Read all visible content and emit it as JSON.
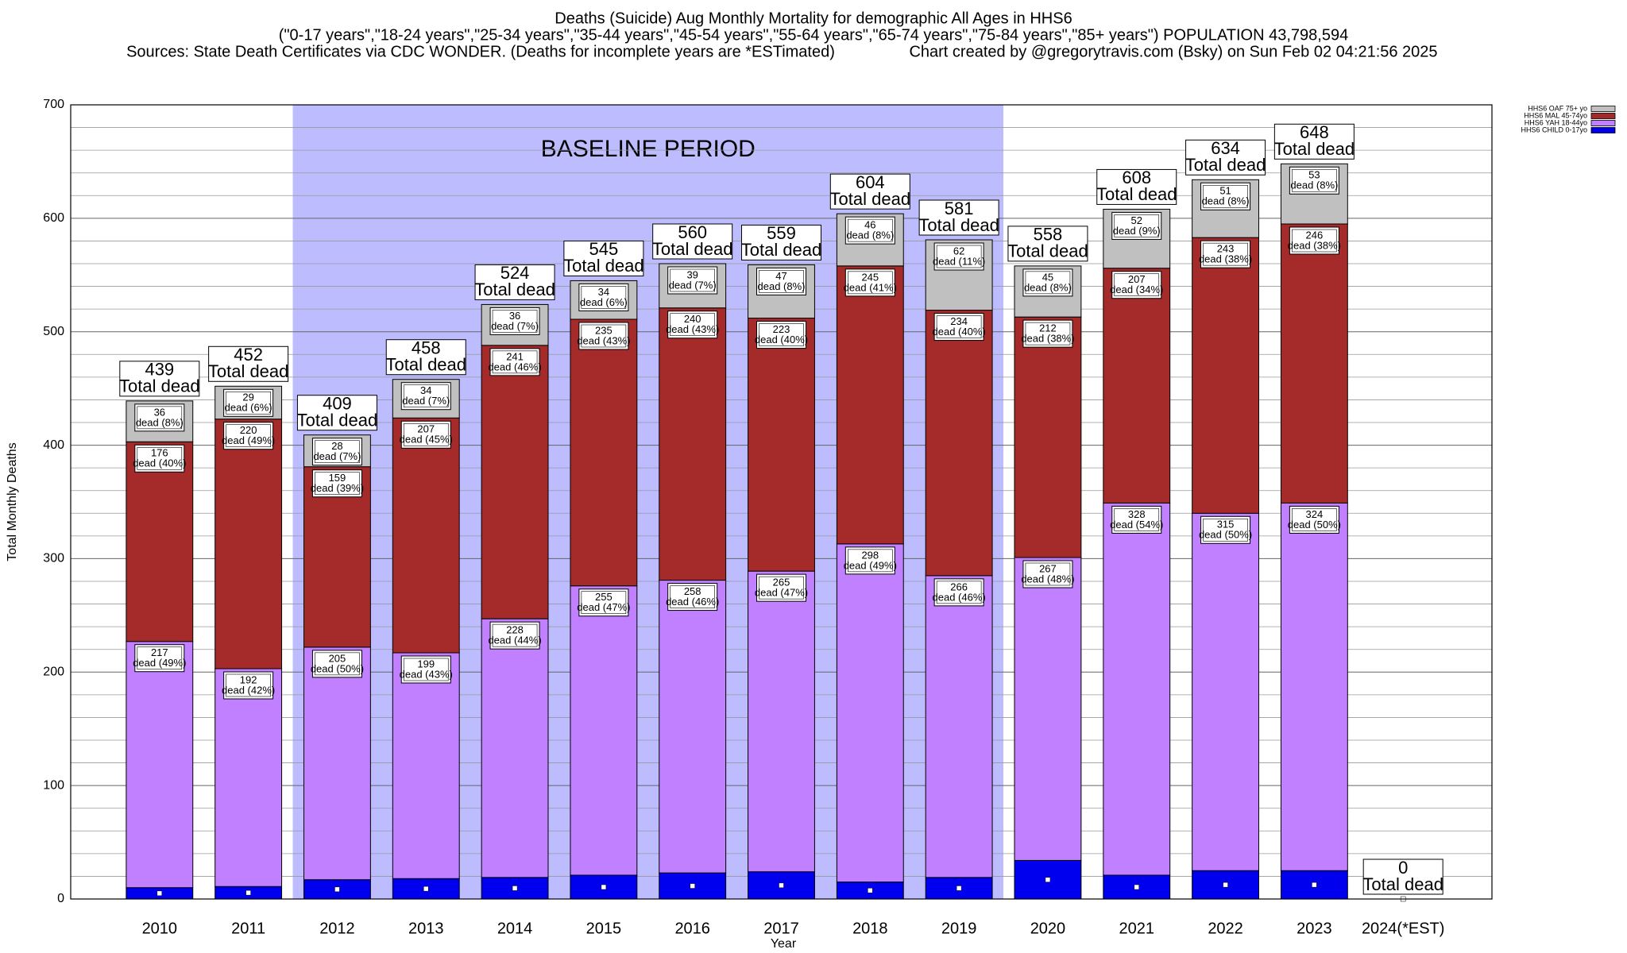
{
  "chart_data": {
    "type": "bar",
    "stacked": true,
    "title": "Deaths (Suicide) Aug Monthly Mortality for demographic All Ages in HHS6",
    "subtitle": "(\"0-17 years\",\"18-24 years\",\"25-34 years\",\"35-44 years\",\"45-54 years\",\"55-64 years\",\"65-74 years\",\"75-84 years\",\"85+ years\") POPULATION 43,798,594",
    "source": "Sources: State Death Certificates via CDC WONDER. (Deaths for incomplete years are *ESTimated)",
    "credit": "Chart created by @gregorytravis.com (Bsky) on Sun Feb 02 04:21:56 2025",
    "x_label": "Year",
    "y_label": "Total Monthly Deaths",
    "categories": [
      "2010",
      "2011",
      "2012",
      "2013",
      "2014",
      "2015",
      "2016",
      "2017",
      "2018",
      "2019",
      "2020",
      "2021",
      "2022",
      "2023",
      "2024(*EST)"
    ],
    "baseline": {
      "label": "BASELINE PERIOD",
      "start": "2012",
      "end": "2019",
      "color": "#bcbcff"
    },
    "series": [
      {
        "name": "HHS6 CHILD 0-17yo",
        "color": "#0000ee",
        "values": [
          10,
          11,
          17,
          18,
          19,
          21,
          23,
          24,
          15,
          19,
          34,
          21,
          25,
          25,
          0
        ]
      },
      {
        "name": "HHS6 YAH 18-44yo",
        "color": "#c080ff",
        "values": [
          217,
          192,
          205,
          199,
          228,
          255,
          258,
          265,
          298,
          266,
          267,
          328,
          315,
          324,
          0
        ],
        "value_labels": [
          "dead (49%)",
          "dead (42%)",
          "dead (50%)",
          "dead (43%)",
          "dead (44%)",
          "dead (47%)",
          "dead (46%)",
          "dead (47%)",
          "dead (49%)",
          "dead (46%)",
          "dead (48%)",
          "dead (54%)",
          "dead (50%)",
          "dead (50%)",
          null
        ]
      },
      {
        "name": "HHS6 MAL 45-74yo",
        "color": "#a52a2a",
        "values": [
          176,
          220,
          159,
          207,
          241,
          235,
          240,
          223,
          245,
          234,
          212,
          207,
          243,
          246,
          0
        ],
        "value_labels": [
          "dead (40%)",
          "dead (49%)",
          "dead (39%)",
          "dead (45%)",
          "dead (46%)",
          "dead (43%)",
          "dead (43%)",
          "dead (40%)",
          "dead (41%)",
          "dead (40%)",
          "dead (38%)",
          "dead (34%)",
          "dead (38%)",
          "dead (38%)",
          null
        ]
      },
      {
        "name": "HHS6 OAF 75+ yo",
        "color": "#c0c0c0",
        "values": [
          36,
          29,
          28,
          34,
          36,
          34,
          39,
          47,
          46,
          62,
          45,
          52,
          51,
          53,
          0
        ],
        "value_labels": [
          "dead (8%)",
          "dead (6%)",
          "dead (7%)",
          "dead (7%)",
          "dead (7%)",
          "dead (6%)",
          "dead (7%)",
          "dead (8%)",
          "dead (8%)",
          "dead (11%)",
          "dead (8%)",
          "dead (9%)",
          "dead (8%)",
          "dead (8%)",
          null
        ]
      }
    ],
    "totals": [
      439,
      452,
      409,
      458,
      524,
      545,
      560,
      559,
      604,
      581,
      558,
      608,
      634,
      648,
      0
    ],
    "total_label": "Total dead",
    "ylim": [
      0,
      700
    ],
    "yticks": [
      0,
      100,
      200,
      300,
      400,
      500,
      600,
      700
    ],
    "minor_yticks": [
      20,
      40,
      60,
      80,
      120,
      140,
      160,
      180,
      220,
      240,
      260,
      280,
      320,
      340,
      360,
      380,
      420,
      440,
      460,
      480,
      520,
      540,
      560,
      580,
      620,
      640,
      660,
      680
    ],
    "grid": true,
    "legend": "top-right"
  }
}
